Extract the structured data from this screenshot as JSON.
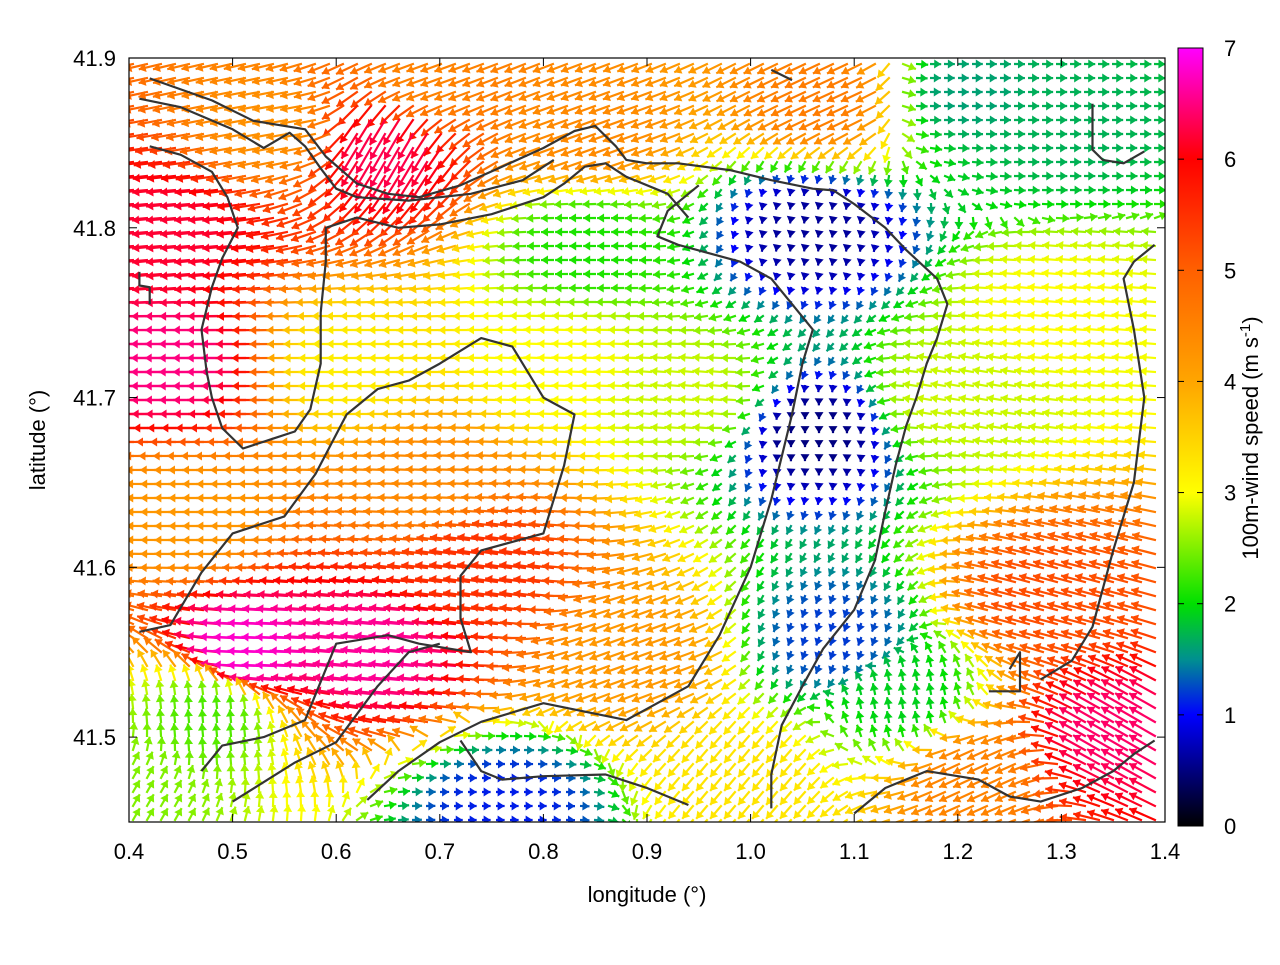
{
  "chart_data": {
    "type": "vector-field",
    "xlabel": "longitude (°)",
    "ylabel": "latitude (°)",
    "colorbar_label": "100m-wind speed (m s⁻¹)",
    "colorbar_label_main": "100m-wind speed (m s",
    "colorbar_label_exp": "-1",
    "colorbar_label_close": ")",
    "xlim": [
      0.4,
      1.4
    ],
    "ylim": [
      41.45,
      41.9
    ],
    "clim": [
      0,
      7
    ],
    "x_ticks": [
      0.4,
      0.5,
      0.6,
      0.7,
      0.8,
      0.9,
      1.0,
      1.1,
      1.2,
      1.3,
      1.4
    ],
    "x_tick_labels": [
      "0.4",
      "0.5",
      "0.6",
      "0.7",
      "0.8",
      "0.9",
      "1.0",
      "1.1",
      "1.2",
      "1.3",
      "1.4"
    ],
    "y_ticks": [
      41.5,
      41.6,
      41.7,
      41.8,
      41.9
    ],
    "y_tick_labels": [
      "41.5",
      "41.6",
      "41.7",
      "41.8",
      "41.9"
    ],
    "colorbar_ticks": [
      0,
      1,
      2,
      3,
      4,
      5,
      6,
      7
    ],
    "colorbar_tick_labels": [
      "0",
      "1",
      "2",
      "3",
      "4",
      "5",
      "6",
      "7"
    ],
    "colormap": [
      {
        "v": 0,
        "color": "#000000"
      },
      {
        "v": 1,
        "color": "#0000ff"
      },
      {
        "v": 1.5,
        "color": "#009090"
      },
      {
        "v": 2,
        "color": "#00e000"
      },
      {
        "v": 3,
        "color": "#ffff00"
      },
      {
        "v": 4,
        "color": "#ffa500"
      },
      {
        "v": 5,
        "color": "#ff6000"
      },
      {
        "v": 6,
        "color": "#ff0000"
      },
      {
        "v": 7,
        "color": "#ff00ff"
      }
    ],
    "wind_field_regions": [
      {
        "lon": 0.46,
        "lat": 41.72,
        "speed": 6.5,
        "dir_deg": 180
      },
      {
        "lon": 0.45,
        "lat": 41.8,
        "speed": 6.2,
        "dir_deg": 185
      },
      {
        "lon": 0.65,
        "lat": 41.85,
        "speed": 6.3,
        "dir_deg": 240
      },
      {
        "lon": 0.55,
        "lat": 41.86,
        "speed": 4.3,
        "dir_deg": 190
      },
      {
        "lon": 0.7,
        "lat": 41.89,
        "speed": 4.5,
        "dir_deg": 200
      },
      {
        "lon": 0.85,
        "lat": 41.86,
        "speed": 4.4,
        "dir_deg": 200
      },
      {
        "lon": 1.08,
        "lat": 41.88,
        "speed": 4.6,
        "dir_deg": 205
      },
      {
        "lon": 1.2,
        "lat": 41.88,
        "speed": 1.6,
        "dir_deg": 0
      },
      {
        "lon": 1.3,
        "lat": 41.86,
        "speed": 1.7,
        "dir_deg": 0
      },
      {
        "lon": 0.85,
        "lat": 41.79,
        "speed": 2.1,
        "dir_deg": 180
      },
      {
        "lon": 1.06,
        "lat": 41.8,
        "speed": 0.6,
        "dir_deg": 260
      },
      {
        "lon": 1.06,
        "lat": 41.68,
        "speed": 0.5,
        "dir_deg": 270
      },
      {
        "lon": 1.08,
        "lat": 41.56,
        "speed": 1.2,
        "dir_deg": 250
      },
      {
        "lon": 0.62,
        "lat": 41.72,
        "speed": 3.2,
        "dir_deg": 180
      },
      {
        "lon": 0.82,
        "lat": 41.72,
        "speed": 3.0,
        "dir_deg": 178
      },
      {
        "lon": 0.95,
        "lat": 41.7,
        "speed": 2.8,
        "dir_deg": 175
      },
      {
        "lon": 0.7,
        "lat": 41.65,
        "speed": 4.4,
        "dir_deg": 178
      },
      {
        "lon": 0.65,
        "lat": 41.55,
        "speed": 6.6,
        "dir_deg": 175
      },
      {
        "lon": 0.75,
        "lat": 41.6,
        "speed": 5.5,
        "dir_deg": 172
      },
      {
        "lon": 0.53,
        "lat": 41.55,
        "speed": 6.8,
        "dir_deg": 178
      },
      {
        "lon": 0.47,
        "lat": 41.63,
        "speed": 4.2,
        "dir_deg": 180
      },
      {
        "lon": 0.48,
        "lat": 41.51,
        "speed": 2.3,
        "dir_deg": 95
      },
      {
        "lon": 0.9,
        "lat": 41.55,
        "speed": 4.2,
        "dir_deg": 200
      },
      {
        "lon": 1.0,
        "lat": 41.48,
        "speed": 3.3,
        "dir_deg": 230
      },
      {
        "lon": 1.15,
        "lat": 41.52,
        "speed": 1.9,
        "dir_deg": 100
      },
      {
        "lon": 1.2,
        "lat": 41.7,
        "speed": 2.8,
        "dir_deg": 170
      },
      {
        "lon": 1.3,
        "lat": 41.75,
        "speed": 3.0,
        "dir_deg": 175
      },
      {
        "lon": 1.3,
        "lat": 41.58,
        "speed": 5.2,
        "dir_deg": 165
      },
      {
        "lon": 1.36,
        "lat": 41.5,
        "speed": 6.4,
        "dir_deg": 150
      },
      {
        "lon": 1.22,
        "lat": 41.48,
        "speed": 4.5,
        "dir_deg": 205
      },
      {
        "lon": 0.76,
        "lat": 41.46,
        "speed": 1.1,
        "dir_deg": 0
      },
      {
        "lon": 0.4,
        "lat": 41.46,
        "speed": 2.5,
        "dir_deg": 60
      }
    ],
    "contour_lines": [
      [
        [
          0.42,
          41.888
        ],
        [
          0.48,
          41.875
        ],
        [
          0.52,
          41.863
        ],
        [
          0.55,
          41.86
        ],
        [
          0.57,
          41.858
        ],
        [
          0.59,
          41.842
        ],
        [
          0.62,
          41.826
        ],
        [
          0.65,
          41.82
        ],
        [
          0.68,
          41.818
        ],
        [
          0.72,
          41.825
        ],
        [
          0.76,
          41.836
        ],
        [
          0.8,
          41.847
        ],
        [
          0.83,
          41.857
        ],
        [
          0.85,
          41.86
        ],
        [
          0.87,
          41.848
        ],
        [
          0.88,
          41.84
        ],
        [
          0.9,
          41.838
        ],
        [
          0.93,
          41.838
        ],
        [
          0.98,
          41.834
        ],
        [
          1.02,
          41.828
        ],
        [
          1.06,
          41.823
        ],
        [
          1.08,
          41.822
        ],
        [
          1.1,
          41.814
        ],
        [
          1.13,
          41.8
        ],
        [
          1.15,
          41.787
        ],
        [
          1.18,
          41.77
        ],
        [
          1.19,
          41.755
        ],
        [
          1.18,
          41.735
        ],
        [
          1.17,
          41.72
        ],
        [
          1.16,
          41.7
        ],
        [
          1.15,
          41.683
        ],
        [
          1.14,
          41.66
        ],
        [
          1.13,
          41.633
        ],
        [
          1.12,
          41.604
        ],
        [
          1.1,
          41.575
        ],
        [
          1.07,
          41.552
        ],
        [
          1.05,
          41.53
        ],
        [
          1.03,
          41.507
        ],
        [
          1.02,
          41.478
        ],
        [
          1.02,
          41.458
        ]
      ],
      [
        [
          0.41,
          41.876
        ],
        [
          0.45,
          41.871
        ],
        [
          0.5,
          41.858
        ],
        [
          0.53,
          41.847
        ],
        [
          0.555,
          41.856
        ],
        [
          0.57,
          41.848
        ],
        [
          0.585,
          41.835
        ],
        [
          0.6,
          41.823
        ],
        [
          0.62,
          41.818
        ],
        [
          0.67,
          41.816
        ],
        [
          0.73,
          41.82
        ],
        [
          0.78,
          41.828
        ],
        [
          0.81,
          41.84
        ]
      ],
      [
        [
          0.41,
          41.774
        ],
        [
          0.41,
          41.766
        ],
        [
          0.42,
          41.765
        ],
        [
          0.42,
          41.755
        ]
      ],
      [
        [
          0.42,
          41.848
        ],
        [
          0.45,
          41.843
        ],
        [
          0.48,
          41.833
        ],
        [
          0.495,
          41.818
        ],
        [
          0.505,
          41.8
        ],
        [
          0.49,
          41.782
        ],
        [
          0.48,
          41.765
        ],
        [
          0.47,
          41.74
        ],
        [
          0.475,
          41.715
        ],
        [
          0.48,
          41.7
        ],
        [
          0.49,
          41.682
        ],
        [
          0.51,
          41.67
        ],
        [
          0.54,
          41.676
        ],
        [
          0.56,
          41.68
        ],
        [
          0.575,
          41.693
        ],
        [
          0.585,
          41.72
        ],
        [
          0.585,
          41.75
        ],
        [
          0.59,
          41.78
        ],
        [
          0.59,
          41.8
        ],
        [
          0.62,
          41.806
        ],
        [
          0.66,
          41.8
        ],
        [
          0.7,
          41.802
        ],
        [
          0.75,
          41.808
        ],
        [
          0.8,
          41.818
        ],
        [
          0.82,
          41.826
        ],
        [
          0.84,
          41.836
        ],
        [
          0.86,
          41.838
        ],
        [
          0.88,
          41.83
        ],
        [
          0.92,
          41.82
        ],
        [
          0.94,
          41.806
        ]
      ],
      [
        [
          0.41,
          41.562
        ],
        [
          0.44,
          41.566
        ],
        [
          0.47,
          41.597
        ],
        [
          0.5,
          41.62
        ],
        [
          0.55,
          41.63
        ],
        [
          0.58,
          41.655
        ],
        [
          0.61,
          41.69
        ],
        [
          0.64,
          41.705
        ],
        [
          0.67,
          41.71
        ],
        [
          0.7,
          41.72
        ],
        [
          0.74,
          41.735
        ],
        [
          0.77,
          41.73
        ],
        [
          0.8,
          41.7
        ],
        [
          0.83,
          41.69
        ],
        [
          0.82,
          41.66
        ],
        [
          0.8,
          41.62
        ],
        [
          0.74,
          41.61
        ],
        [
          0.72,
          41.595
        ],
        [
          0.72,
          41.57
        ],
        [
          0.73,
          41.55
        ],
        [
          0.68,
          41.555
        ],
        [
          0.65,
          41.56
        ],
        [
          0.6,
          41.555
        ],
        [
          0.57,
          41.51
        ],
        [
          0.53,
          41.5
        ],
        [
          0.49,
          41.495
        ],
        [
          0.47,
          41.48
        ]
      ],
      [
        [
          0.5,
          41.462
        ],
        [
          0.56,
          41.485
        ],
        [
          0.6,
          41.497
        ],
        [
          0.64,
          41.53
        ],
        [
          0.67,
          41.55
        ],
        [
          0.7,
          41.555
        ]
      ],
      [
        [
          0.63,
          41.463
        ],
        [
          0.66,
          41.48
        ],
        [
          0.7,
          41.497
        ],
        [
          0.74,
          41.509
        ],
        [
          0.8,
          41.52
        ],
        [
          0.88,
          41.51
        ],
        [
          0.94,
          41.53
        ],
        [
          0.97,
          41.56
        ],
        [
          1.0,
          41.6
        ],
        [
          1.02,
          41.64
        ],
        [
          1.04,
          41.69
        ],
        [
          1.05,
          41.72
        ],
        [
          1.06,
          41.74
        ],
        [
          1.02,
          41.77
        ],
        [
          0.99,
          41.78
        ],
        [
          0.93,
          41.79
        ],
        [
          0.91,
          41.795
        ],
        [
          0.92,
          41.81
        ],
        [
          0.95,
          41.825
        ]
      ],
      [
        [
          0.72,
          41.498
        ],
        [
          0.74,
          41.48
        ],
        [
          0.76,
          41.475
        ],
        [
          0.8,
          41.477
        ],
        [
          0.86,
          41.478
        ],
        [
          0.9,
          41.47
        ],
        [
          0.94,
          41.46
        ]
      ],
      [
        [
          1.1,
          41.455
        ],
        [
          1.13,
          41.47
        ],
        [
          1.17,
          41.48
        ],
        [
          1.22,
          41.475
        ],
        [
          1.25,
          41.465
        ],
        [
          1.28,
          41.462
        ],
        [
          1.32,
          41.47
        ],
        [
          1.35,
          41.48
        ],
        [
          1.37,
          41.49
        ],
        [
          1.39,
          41.498
        ]
      ],
      [
        [
          1.28,
          41.534
        ],
        [
          1.31,
          41.545
        ],
        [
          1.33,
          41.565
        ],
        [
          1.35,
          41.61
        ],
        [
          1.37,
          41.65
        ],
        [
          1.38,
          41.7
        ],
        [
          1.37,
          41.74
        ],
        [
          1.36,
          41.77
        ],
        [
          1.37,
          41.78
        ],
        [
          1.39,
          41.79
        ]
      ],
      [
        [
          1.23,
          41.527
        ],
        [
          1.26,
          41.527
        ],
        [
          1.26,
          41.55
        ],
        [
          1.25,
          41.54
        ]
      ],
      [
        [
          1.33,
          41.873
        ],
        [
          1.33,
          41.846
        ],
        [
          1.34,
          41.84
        ],
        [
          1.36,
          41.838
        ],
        [
          1.38,
          41.845
        ]
      ],
      [
        [
          1.02,
          41.893
        ],
        [
          1.04,
          41.887
        ]
      ]
    ]
  }
}
